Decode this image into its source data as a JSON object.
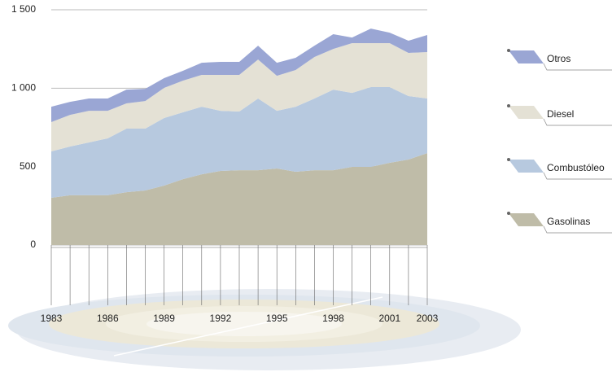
{
  "chart_data": {
    "type": "stacked-area",
    "x": [
      1983,
      1984,
      1985,
      1986,
      1987,
      1988,
      1989,
      1990,
      1991,
      1992,
      1993,
      1994,
      1995,
      1996,
      1997,
      1998,
      1999,
      2000,
      2001,
      2002,
      2003
    ],
    "xlim": [
      1983,
      2003
    ],
    "xticks": [
      1983,
      1986,
      1989,
      1992,
      1995,
      1998,
      2001,
      2003
    ],
    "ylim": [
      0,
      1500
    ],
    "yticks": [
      0,
      500,
      {
        "value": 1000,
        "label": "1 000"
      },
      {
        "value": 1500,
        "label": "1 500"
      }
    ],
    "grid": true,
    "legend": "right",
    "series": [
      {
        "name": "Gasolinas",
        "color": "#bfbca8",
        "values": [
          301,
          317,
          317,
          317,
          337,
          348,
          379,
          420,
          451,
          472,
          477,
          477,
          488,
          467,
          477,
          477,
          498,
          498,
          524,
          545,
          586
        ]
      },
      {
        "name": "Combustóleo",
        "color": "#b7c9df",
        "values": [
          296,
          311,
          337,
          363,
          405,
          394,
          431,
          426,
          431,
          384,
          374,
          457,
          368,
          415,
          457,
          514,
          472,
          509,
          483,
          405,
          348
        ]
      },
      {
        "name": "Diesel",
        "color": "#e4e1d5",
        "values": [
          187,
          202,
          202,
          176,
          161,
          176,
          192,
          202,
          203,
          229,
          234,
          249,
          223,
          234,
          265,
          259,
          317,
          280,
          280,
          275,
          296
        ]
      },
      {
        "name": "Otros",
        "color": "#9aa6d4",
        "values": [
          98,
          83,
          78,
          78,
          88,
          78,
          62,
          63,
          77,
          83,
          83,
          88,
          83,
          78,
          72,
          94,
          36,
          93,
          67,
          78,
          109
        ]
      }
    ]
  }
}
